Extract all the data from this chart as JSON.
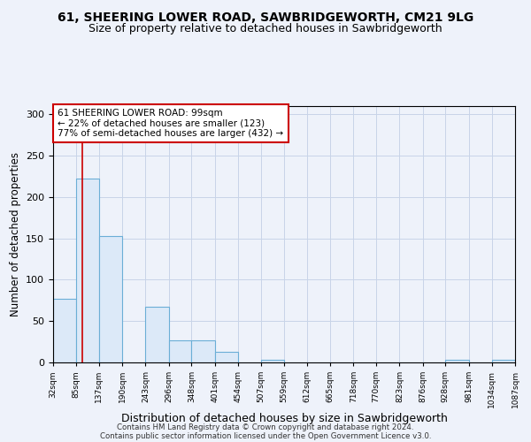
{
  "title1": "61, SHEERING LOWER ROAD, SAWBRIDGEWORTH, CM21 9LG",
  "title2": "Size of property relative to detached houses in Sawbridgeworth",
  "xlabel": "Distribution of detached houses by size in Sawbridgeworth",
  "ylabel": "Number of detached properties",
  "bin_edges": [
    32,
    85,
    137,
    190,
    243,
    296,
    348,
    401,
    454,
    507,
    559,
    612,
    665,
    718,
    770,
    823,
    876,
    928,
    981,
    1034,
    1087
  ],
  "bar_heights": [
    77,
    222,
    153,
    0,
    67,
    27,
    27,
    13,
    0,
    3,
    0,
    0,
    0,
    0,
    0,
    0,
    0,
    3,
    0,
    3
  ],
  "bar_facecolor": "#dce9f8",
  "bar_edgecolor": "#6baed6",
  "property_size": 99,
  "vline_color": "#cc0000",
  "annotation_text": "61 SHEERING LOWER ROAD: 99sqm\n← 22% of detached houses are smaller (123)\n77% of semi-detached houses are larger (432) →",
  "annotation_boxcolor": "white",
  "annotation_edgecolor": "#cc0000",
  "footer1": "Contains HM Land Registry data © Crown copyright and database right 2024.",
  "footer2": "Contains public sector information licensed under the Open Government Licence v3.0.",
  "background_color": "#eef2fa",
  "ylim": [
    0,
    310
  ],
  "yticks": [
    0,
    50,
    100,
    150,
    200,
    250,
    300
  ],
  "title1_fontsize": 10,
  "title2_fontsize": 9,
  "xlabel_fontsize": 9,
  "ylabel_fontsize": 8.5,
  "annot_fontsize": 7.5
}
